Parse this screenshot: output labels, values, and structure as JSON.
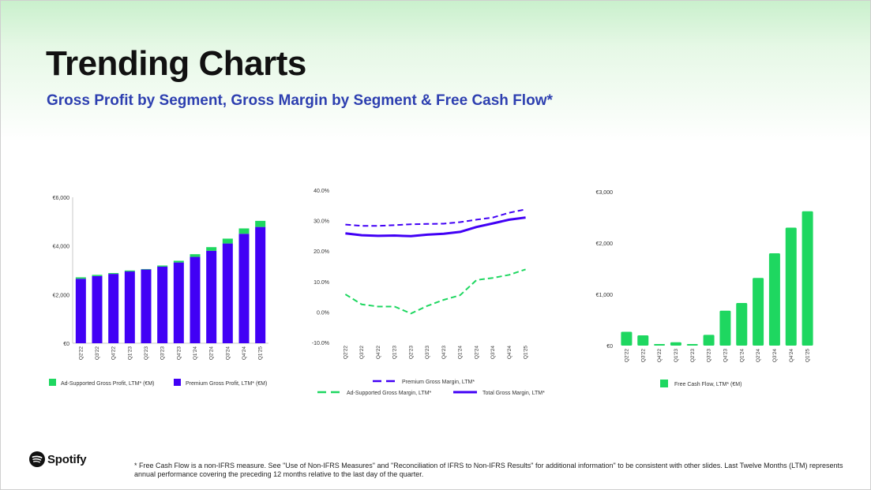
{
  "header": {
    "title": "Trending Charts",
    "subtitle": "Gross Profit by Segment, Gross Margin by Segment & Free Cash Flow*"
  },
  "brand": {
    "name": "Spotify",
    "accent": "#1ed760",
    "purple": "#4100f5",
    "subtitle_color": "#2d3fb0"
  },
  "footnote": "* Free Cash Flow is a non-IFRS measure. See \"Use of Non-IFRS Measures\" and \"Reconciliation of IFRS to Non-IFRS Results\" for additional information\" to be consistent with other slides. Last Twelve Months (LTM) represents annual performance covering the preceding 12 months relative to the last day of the quarter.",
  "chart_data": [
    {
      "type": "bar",
      "stacked": true,
      "title": "",
      "categories": [
        "Q2'22",
        "Q3'22",
        "Q4'22",
        "Q1'23",
        "Q2'23",
        "Q3'23",
        "Q4'23",
        "Q1'24",
        "Q2'24",
        "Q3'24",
        "Q4'24",
        "Q1'25"
      ],
      "series": [
        {
          "name": "Premium Gross Profit, LTM* (€M)",
          "color": "#4100f5",
          "values": [
            2650,
            2760,
            2850,
            2950,
            3030,
            3150,
            3320,
            3550,
            3800,
            4100,
            4500,
            4780
          ]
        },
        {
          "name": "Ad-Supported Gross Profit, LTM* (€M)",
          "color": "#1ed760",
          "values": [
            60,
            50,
            35,
            40,
            20,
            45,
            70,
            110,
            150,
            200,
            220,
            250
          ]
        }
      ],
      "y_ticks": [
        "€0",
        "€2,000",
        "€4,000",
        "€6,000"
      ],
      "ylim": [
        0,
        6000
      ],
      "legend": [
        "Ad-Supported Gross Profit, LTM* (€M)",
        "Premium Gross Profit, LTM* (€M)"
      ]
    },
    {
      "type": "line",
      "title": "",
      "categories": [
        "Q2'22",
        "Q3'22",
        "Q4'22",
        "Q1'23",
        "Q2'23",
        "Q3'23",
        "Q4'23",
        "Q1'24",
        "Q2'24",
        "Q3'24",
        "Q4'24",
        "Q1'25"
      ],
      "series": [
        {
          "name": "Premium Gross Margin, LTM*",
          "color": "#4100f5",
          "style": "dashed",
          "values": [
            28.7,
            28.3,
            28.3,
            28.5,
            28.8,
            28.9,
            29.0,
            29.5,
            30.3,
            31.0,
            32.6,
            33.7
          ]
        },
        {
          "name": "Total Gross Margin, LTM*",
          "color": "#4100f5",
          "style": "solid",
          "values": [
            25.8,
            25.2,
            25.0,
            25.1,
            24.9,
            25.4,
            25.7,
            26.3,
            27.9,
            29.1,
            30.3,
            31.0
          ]
        },
        {
          "name": "Ad-Supported Gross Margin, LTM*",
          "color": "#1ed760",
          "style": "dashed",
          "values": [
            5.8,
            2.5,
            1.8,
            1.8,
            -0.5,
            2.0,
            4.0,
            5.5,
            10.5,
            11.2,
            12.2,
            14.0
          ]
        }
      ],
      "y_ticks": [
        "-10.0%",
        "0.0%",
        "10.0%",
        "20.0%",
        "30.0%",
        "40.0%"
      ],
      "ylim": [
        -10,
        40
      ],
      "legend": [
        "Premium Gross Margin, LTM*",
        "Ad-Supported Gross Margin, LTM*",
        "Total Gross Margin, LTM*"
      ]
    },
    {
      "type": "bar",
      "title": "",
      "categories": [
        "Q2'22",
        "Q3'22",
        "Q4'22",
        "Q1'23",
        "Q2'23",
        "Q3'23",
        "Q4'23",
        "Q1'24",
        "Q2'24",
        "Q3'24",
        "Q4'24",
        "Q1'25"
      ],
      "series": [
        {
          "name": "Free Cash Flow, LTM* (€M)",
          "color": "#1ed760",
          "values": [
            270,
            200,
            30,
            65,
            30,
            210,
            680,
            830,
            1320,
            1800,
            2300,
            2620
          ]
        }
      ],
      "y_ticks": [
        "€0",
        "€1,000",
        "€2,000",
        "€3,000"
      ],
      "ylim": [
        0,
        3000
      ],
      "legend": [
        "Free Cash Flow, LTM* (€M)"
      ]
    }
  ]
}
